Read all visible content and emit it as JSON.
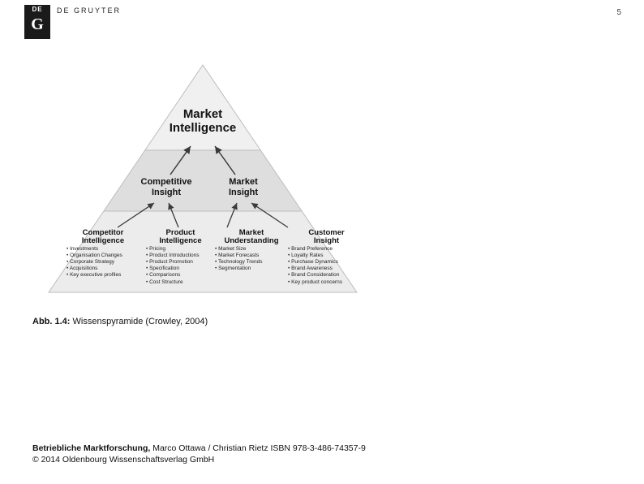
{
  "header": {
    "logo_de": "DE",
    "logo_g": "G",
    "publisher": "DE GRUYTER"
  },
  "page_number": "5",
  "pyramid": {
    "type": "tree",
    "background_color": "#ffffff",
    "band_colors": {
      "top": "#f0f0f0",
      "middle": "#dedede",
      "bottom": "#ececec"
    },
    "outline_color": "#bdbdbd",
    "arrow_color": "#3a3a3a",
    "top": {
      "line1": "Market",
      "line2": "Intelligence"
    },
    "middle": [
      {
        "line1": "Competitive",
        "line2": "Insight"
      },
      {
        "line1": "Market",
        "line2": "Insight"
      }
    ],
    "base": [
      {
        "title1": "Competitor",
        "title2": "Intelligence",
        "items": [
          "Investments",
          "Organisation Changes",
          "Corporate Strategy",
          "Acquisitions",
          "Key executive profiles"
        ]
      },
      {
        "title1": "Product",
        "title2": "Intelligence",
        "items": [
          "Pricing",
          "Product Introductions",
          "Product Promotion",
          "Specification",
          "Comparisons",
          "Cost Structure"
        ]
      },
      {
        "title1": "Market",
        "title2": "Understanding",
        "items": [
          "Market Size",
          "Market Forecasts",
          "Technology Trends",
          "Segmentation"
        ]
      },
      {
        "title1": "Customer",
        "title2": "Insight",
        "items": [
          "Brand Preference",
          "Loyalty Rates",
          "Purchase Dynamics",
          "Brand Awareness",
          "Brand Consideration",
          "Key product concerns"
        ]
      }
    ]
  },
  "caption": {
    "label": "Abb. 1.4:",
    "text": "Wissenspyramide (Crowley, 2004)"
  },
  "footer": {
    "title": "Betriebliche Marktforschung,",
    "authors": "Marco Ottawa / Christian Rietz ISBN 978-3-486-74357-9",
    "copyright": "© 2014 Oldenbourg Wissenschaftsverlag GmbH"
  }
}
